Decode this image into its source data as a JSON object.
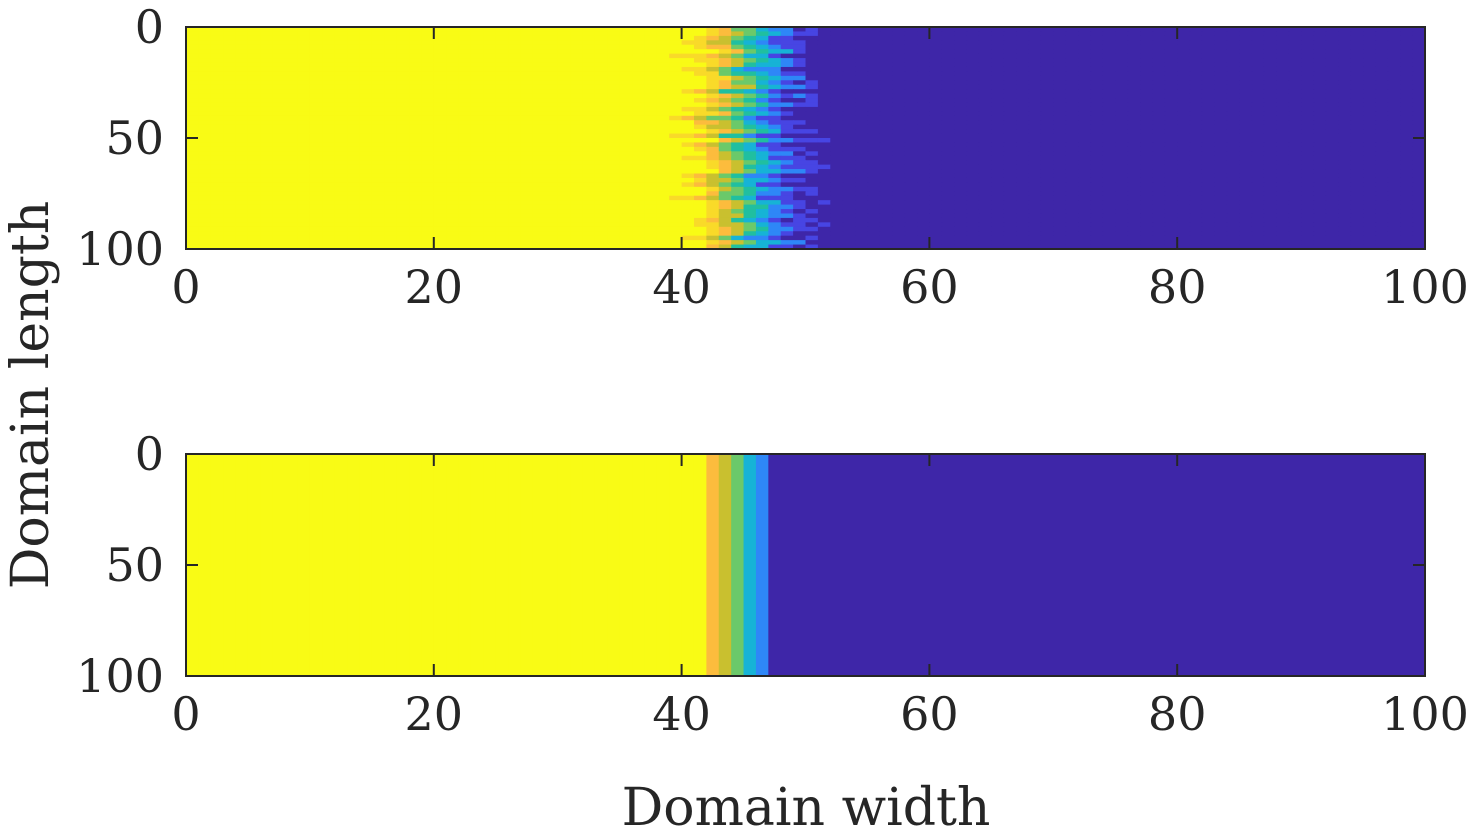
{
  "figure": {
    "ylabel": "Domain length",
    "xlabel": "Domain width"
  },
  "colormap": [
    "#3e26a8",
    "#4745e3",
    "#2e87f7",
    "#16b3d6",
    "#20bfa0",
    "#6bc96a",
    "#c9c02f",
    "#fcbc3d",
    "#f9da29",
    "#f9fb15"
  ],
  "chart_data": [
    {
      "type": "heatmap",
      "title": "",
      "xlabel": "",
      "ylabel": "",
      "xlim": [
        0,
        100
      ],
      "ylim": [
        0,
        100
      ],
      "y_reversed": true,
      "xticks": [
        0,
        20,
        40,
        60,
        80,
        100
      ],
      "yticks": [
        0,
        50,
        100
      ],
      "xtick_labels": [
        "0",
        "20",
        "40",
        "60",
        "80",
        "100"
      ],
      "ytick_labels": [
        "0",
        "50",
        "100"
      ],
      "value_range": [
        0,
        1
      ],
      "front_profile": {
        "x": [
          0,
          38,
          39,
          40,
          41,
          42,
          43,
          44,
          45,
          46,
          47,
          48,
          49,
          50,
          51,
          52,
          53,
          55,
          57,
          100
        ],
        "value": [
          1.0,
          1.0,
          0.98,
          0.95,
          0.9,
          0.82,
          0.7,
          0.58,
          0.46,
          0.36,
          0.26,
          0.18,
          0.12,
          0.08,
          0.05,
          0.03,
          0.02,
          0.01,
          0.0,
          0.0
        ]
      },
      "noisy": true
    },
    {
      "type": "heatmap",
      "title": "",
      "xlabel": "",
      "ylabel": "",
      "xlim": [
        0,
        100
      ],
      "ylim": [
        0,
        100
      ],
      "y_reversed": true,
      "xticks": [
        0,
        20,
        40,
        60,
        80,
        100
      ],
      "yticks": [
        0,
        50,
        100
      ],
      "xtick_labels": [
        "0",
        "20",
        "40",
        "60",
        "80",
        "100"
      ],
      "ytick_labels": [
        "0",
        "50",
        "100"
      ],
      "value_range": [
        0,
        1
      ],
      "front_profile": {
        "x": [
          0,
          41,
          42,
          43,
          44,
          45,
          46,
          47,
          48,
          100
        ],
        "value": [
          1.0,
          0.95,
          0.85,
          0.72,
          0.58,
          0.42,
          0.28,
          0.14,
          0.0,
          0.0
        ]
      },
      "noisy": false
    }
  ]
}
